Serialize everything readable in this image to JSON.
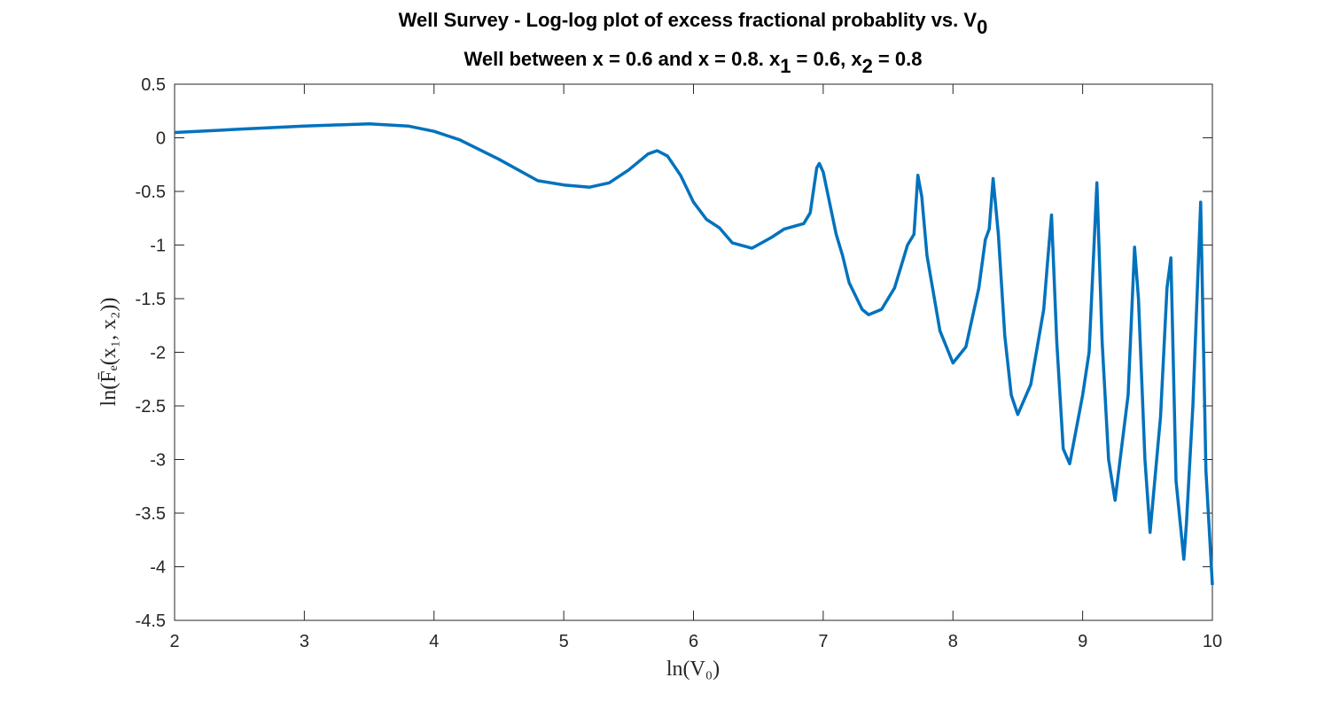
{
  "chart_data": {
    "type": "line",
    "title": [
      {
        "text": "Well Survey - Log-log plot of excess fractional probablity vs. V"
      },
      {
        "sub": "0"
      }
    ],
    "subtitle": [
      {
        "text": "Well between x = 0.6 and x = 0.8. x"
      },
      {
        "sub": "1"
      },
      {
        "text": " = 0.6, x"
      },
      {
        "sub": "2"
      },
      {
        "text": " = 0.8"
      }
    ],
    "xlabel": "ln(V₀)",
    "ylabel": "ln(F̄ₑ(x₁, x₂))",
    "x": [
      2,
      2.5,
      3,
      3.5,
      3.8,
      4,
      4.2,
      4.5,
      4.8,
      5,
      5.2,
      5.35,
      5.5,
      5.65,
      5.72,
      5.8,
      5.9,
      6.0,
      6.1,
      6.2,
      6.3,
      6.45,
      6.6,
      6.7,
      6.85,
      6.9,
      6.95,
      6.97,
      7.0,
      7.1,
      7.15,
      7.2,
      7.3,
      7.35,
      7.45,
      7.55,
      7.65,
      7.7,
      7.73,
      7.76,
      7.8,
      7.9,
      8.0,
      8.1,
      8.2,
      8.25,
      8.28,
      8.31,
      8.35,
      8.4,
      8.45,
      8.5,
      8.6,
      8.7,
      8.73,
      8.76,
      8.8,
      8.85,
      8.9,
      9.0,
      9.05,
      9.11,
      9.15,
      9.2,
      9.25,
      9.35,
      9.4,
      9.43,
      9.48,
      9.52,
      9.6,
      9.65,
      9.68,
      9.72,
      9.78,
      9.8,
      9.85,
      9.91,
      9.95,
      10
    ],
    "series": [
      {
        "color": "#0072bd",
        "values": [
          0.05,
          0.08,
          0.11,
          0.13,
          0.11,
          0.06,
          -0.02,
          -0.2,
          -0.4,
          -0.44,
          -0.46,
          -0.42,
          -0.3,
          -0.15,
          -0.12,
          -0.17,
          -0.35,
          -0.6,
          -0.76,
          -0.84,
          -0.98,
          -1.03,
          -0.93,
          -0.85,
          -0.8,
          -0.7,
          -0.28,
          -0.24,
          -0.32,
          -0.9,
          -1.1,
          -1.35,
          -1.6,
          -1.65,
          -1.6,
          -1.4,
          -1.0,
          -0.9,
          -0.35,
          -0.55,
          -1.1,
          -1.8,
          -2.1,
          -1.95,
          -1.4,
          -0.95,
          -0.85,
          -0.38,
          -0.9,
          -1.85,
          -2.4,
          -2.58,
          -2.3,
          -1.6,
          -1.15,
          -0.72,
          -1.9,
          -2.9,
          -3.04,
          -2.4,
          -2.0,
          -0.42,
          -1.9,
          -3.0,
          -3.38,
          -2.4,
          -1.02,
          -1.5,
          -3.0,
          -3.68,
          -2.6,
          -1.4,
          -1.12,
          -3.2,
          -3.93,
          -3.6,
          -2.5,
          -0.6,
          -3.1,
          -4.17
        ]
      }
    ],
    "xlim": [
      2,
      10
    ],
    "xticks": [
      2,
      3,
      4,
      5,
      6,
      7,
      8,
      9,
      10
    ],
    "ylim": [
      -4.5,
      0.5
    ],
    "yticks": [
      -4.5,
      -4,
      -3.5,
      -3,
      -2.5,
      -2,
      -1.5,
      -1,
      -0.5,
      0,
      0.5
    ]
  }
}
